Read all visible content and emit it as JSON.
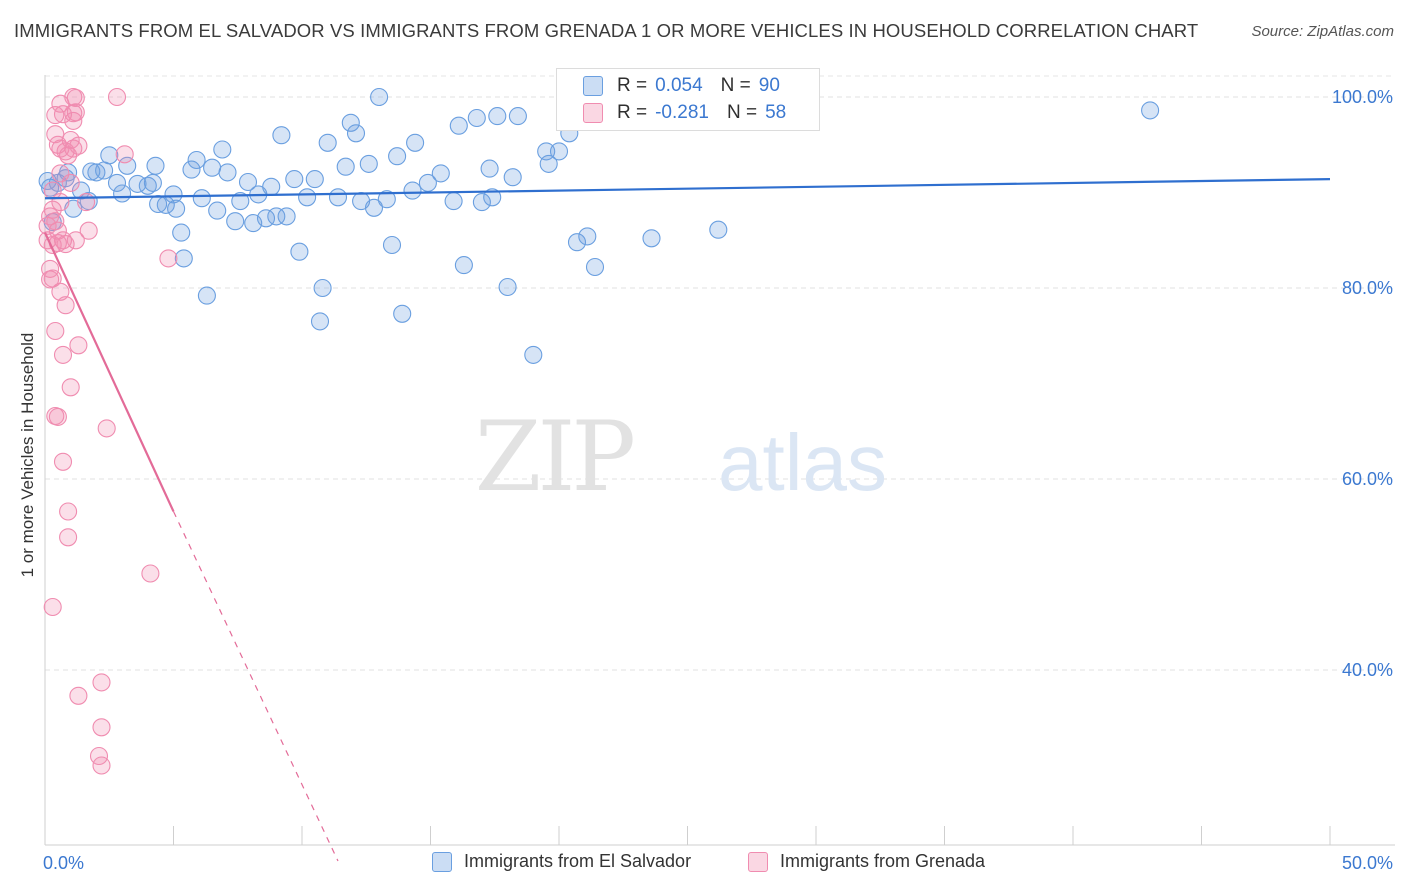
{
  "title": "IMMIGRANTS FROM EL SALVADOR VS IMMIGRANTS FROM GRENADA 1 OR MORE VEHICLES IN HOUSEHOLD CORRELATION CHART",
  "source": "Source: ZipAtlas.com",
  "watermark": {
    "zip": "ZIP",
    "atlas": "atlas"
  },
  "legend": {
    "rows": [
      {
        "r_label": "R =",
        "r_value": "0.054",
        "n_label": "N =",
        "n_value": "90",
        "color": "#6a9fe0"
      },
      {
        "r_label": "R =",
        "r_value": "-0.281",
        "n_label": "N =",
        "n_value": "58",
        "color": "#f08cb0"
      }
    ]
  },
  "chart_data": {
    "type": "scatter",
    "title": "IMMIGRANTS FROM EL SALVADOR VS IMMIGRANTS FROM GRENADA 1 OR MORE VEHICLES IN HOUSEHOLD CORRELATION CHART",
    "xlabel": "",
    "ylabel": "1 or more Vehicles in Household",
    "xlim": [
      0,
      50
    ],
    "ylim": [
      20,
      102
    ],
    "x_tick_labels": [
      "0.0%",
      "50.0%"
    ],
    "y_ticks": [
      40,
      60,
      80,
      100
    ],
    "y_tick_labels": [
      "40.0%",
      "60.0%",
      "80.0%",
      "100.0%"
    ],
    "grid": true,
    "legend_position": "top-center",
    "series": [
      {
        "name": "Immigrants from El Salvador",
        "color": "#6a9fe0",
        "trend": {
          "x": [
            0,
            50
          ],
          "y": [
            89.4,
            91.4
          ],
          "dashed_from": null
        },
        "points": [
          [
            0.1,
            91.2
          ],
          [
            0.2,
            90.5
          ],
          [
            0.3,
            86.9
          ],
          [
            0.5,
            91.0
          ],
          [
            0.8,
            91.5
          ],
          [
            0.9,
            92.1
          ],
          [
            1.1,
            88.3
          ],
          [
            1.4,
            90.2
          ],
          [
            1.7,
            89.1
          ],
          [
            1.8,
            92.2
          ],
          [
            2.0,
            92.1
          ],
          [
            2.3,
            92.3
          ],
          [
            2.5,
            93.9
          ],
          [
            2.8,
            91.0
          ],
          [
            3.0,
            89.9
          ],
          [
            3.2,
            92.8
          ],
          [
            3.6,
            90.9
          ],
          [
            4.0,
            90.7
          ],
          [
            4.2,
            91.0
          ],
          [
            4.3,
            92.8
          ],
          [
            4.4,
            88.8
          ],
          [
            4.7,
            88.7
          ],
          [
            5.0,
            89.8
          ],
          [
            5.1,
            88.3
          ],
          [
            5.3,
            85.8
          ],
          [
            5.4,
            83.1
          ],
          [
            5.7,
            92.4
          ],
          [
            5.9,
            93.4
          ],
          [
            6.1,
            89.4
          ],
          [
            6.3,
            79.2
          ],
          [
            6.5,
            92.6
          ],
          [
            6.7,
            88.1
          ],
          [
            6.9,
            94.5
          ],
          [
            7.1,
            92.1
          ],
          [
            7.4,
            87.0
          ],
          [
            7.6,
            89.1
          ],
          [
            7.9,
            91.1
          ],
          [
            8.1,
            86.8
          ],
          [
            8.3,
            89.8
          ],
          [
            8.6,
            87.3
          ],
          [
            8.8,
            90.6
          ],
          [
            9.0,
            87.5
          ],
          [
            9.2,
            96.0
          ],
          [
            9.4,
            87.5
          ],
          [
            9.7,
            91.4
          ],
          [
            9.9,
            83.8
          ],
          [
            10.2,
            89.5
          ],
          [
            10.5,
            91.4
          ],
          [
            10.8,
            80.0
          ],
          [
            10.7,
            76.5
          ],
          [
            11.0,
            95.2
          ],
          [
            11.4,
            89.5
          ],
          [
            11.7,
            92.7
          ],
          [
            11.9,
            97.3
          ],
          [
            12.1,
            96.2
          ],
          [
            12.3,
            89.1
          ],
          [
            12.6,
            93.0
          ],
          [
            12.8,
            88.4
          ],
          [
            13.0,
            100.0
          ],
          [
            13.3,
            89.3
          ],
          [
            13.5,
            84.5
          ],
          [
            13.7,
            93.8
          ],
          [
            13.9,
            77.3
          ],
          [
            14.3,
            90.2
          ],
          [
            14.4,
            95.2
          ],
          [
            14.9,
            91.0
          ],
          [
            15.4,
            92.0
          ],
          [
            15.9,
            89.1
          ],
          [
            16.1,
            97.0
          ],
          [
            16.3,
            82.4
          ],
          [
            16.8,
            97.8
          ],
          [
            17.0,
            89.0
          ],
          [
            17.3,
            92.5
          ],
          [
            17.4,
            89.5
          ],
          [
            17.6,
            98.0
          ],
          [
            18.2,
            91.6
          ],
          [
            18.4,
            98.0
          ],
          [
            18.0,
            80.1
          ],
          [
            19.0,
            73.0
          ],
          [
            19.5,
            94.3
          ],
          [
            19.6,
            93.0
          ],
          [
            20.0,
            94.3
          ],
          [
            20.4,
            96.2
          ],
          [
            20.7,
            84.8
          ],
          [
            21.1,
            85.4
          ],
          [
            21.4,
            82.2
          ],
          [
            23.6,
            85.2
          ],
          [
            26.2,
            86.1
          ],
          [
            43.0,
            98.6
          ]
        ]
      },
      {
        "name": "Immigrants from Grenada",
        "color": "#f08cb0",
        "trend": {
          "x": [
            0,
            5,
            11.4
          ],
          "y": [
            85.8,
            56.6,
            20
          ],
          "dashed_from": 5
        },
        "points": [
          [
            0.1,
            86.5
          ],
          [
            0.1,
            85.0
          ],
          [
            0.2,
            87.5
          ],
          [
            0.2,
            80.9
          ],
          [
            0.3,
            88.2
          ],
          [
            0.3,
            90.2
          ],
          [
            0.3,
            84.5
          ],
          [
            0.3,
            81.0
          ],
          [
            0.3,
            46.6
          ],
          [
            0.4,
            98.1
          ],
          [
            0.4,
            96.1
          ],
          [
            0.4,
            75.5
          ],
          [
            0.4,
            66.6
          ],
          [
            0.5,
            95.0
          ],
          [
            0.5,
            86.0
          ],
          [
            0.5,
            84.7
          ],
          [
            0.5,
            66.5
          ],
          [
            0.6,
            99.3
          ],
          [
            0.6,
            94.6
          ],
          [
            0.6,
            89.0
          ],
          [
            0.6,
            79.6
          ],
          [
            0.7,
            98.2
          ],
          [
            0.7,
            85.0
          ],
          [
            0.7,
            73.0
          ],
          [
            0.7,
            61.8
          ],
          [
            0.8,
            94.3
          ],
          [
            0.8,
            84.6
          ],
          [
            0.8,
            78.2
          ],
          [
            0.9,
            93.9
          ],
          [
            0.9,
            56.6
          ],
          [
            0.9,
            53.9
          ],
          [
            1.0,
            95.5
          ],
          [
            1.0,
            91.0
          ],
          [
            1.0,
            69.6
          ],
          [
            1.1,
            97.5
          ],
          [
            1.1,
            94.6
          ],
          [
            1.1,
            98.3
          ],
          [
            1.1,
            100.0
          ],
          [
            1.2,
            99.9
          ],
          [
            1.2,
            98.4
          ],
          [
            1.2,
            85.0
          ],
          [
            1.3,
            94.9
          ],
          [
            1.3,
            74.0
          ],
          [
            1.3,
            37.3
          ],
          [
            1.6,
            89.0
          ],
          [
            1.7,
            86.0
          ],
          [
            2.2,
            38.7
          ],
          [
            2.2,
            34.0
          ],
          [
            2.1,
            31.0
          ],
          [
            2.2,
            30.0
          ],
          [
            2.4,
            65.3
          ],
          [
            2.8,
            100.0
          ],
          [
            3.1,
            94.0
          ],
          [
            4.1,
            50.1
          ],
          [
            4.8,
            83.1
          ],
          [
            0.2,
            82.0
          ],
          [
            0.4,
            87.0
          ],
          [
            0.6,
            92.0
          ]
        ]
      }
    ]
  },
  "bottom_legend": {
    "items": [
      {
        "label": "Immigrants from El Salvador",
        "color": "#6a9fe0"
      },
      {
        "label": "Immigrants from Grenada",
        "color": "#f08cb0"
      }
    ]
  }
}
